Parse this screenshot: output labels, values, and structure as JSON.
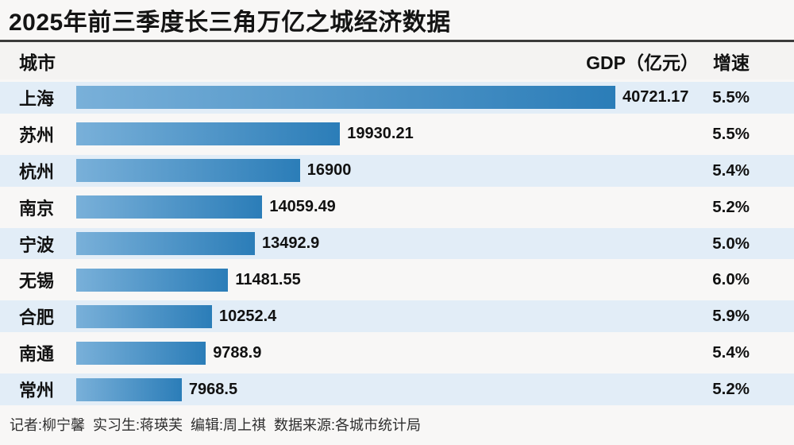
{
  "title": "2025年前三季度长三角万亿之城经济数据",
  "columns": {
    "city": "城市",
    "gdp": "GDP（亿元）",
    "growth": "增速"
  },
  "footer": "记者:柳宁馨  实习生:蒋瑛芙  编辑:周上祺  数据来源:各城市统计局",
  "colors": {
    "page_bg": "#f8f7f6",
    "divider": "#3b3b3b",
    "row_alt_bg": "#e2edf7",
    "bar_gradient_start": "#79b0d9",
    "bar_gradient_end": "#2b7db8"
  },
  "chart_data": {
    "type": "bar",
    "orientation": "horizontal",
    "title": "2025年前三季度长三角万亿之城经济数据",
    "categories": [
      "上海",
      "苏州",
      "杭州",
      "南京",
      "宁波",
      "无锡",
      "合肥",
      "南通",
      "常州"
    ],
    "series": [
      {
        "name": "GDP（亿元）",
        "values": [
          40721.17,
          19930.21,
          16900,
          14059.49,
          13492.9,
          11481.55,
          10252.4,
          9788.9,
          7968.5
        ]
      },
      {
        "name": "增速",
        "values": [
          "5.5%",
          "5.5%",
          "5.4%",
          "5.2%",
          "5.0%",
          "6.0%",
          "5.9%",
          "5.4%",
          "5.2%"
        ]
      }
    ],
    "value_labels": [
      "40721.17",
      "19930.21",
      "16900",
      "14059.49",
      "13492.9",
      "11481.55",
      "10252.4",
      "9788.9",
      "7968.5"
    ],
    "xlim": [
      0,
      40721.17
    ],
    "grid": false,
    "legend": false,
    "source": "各城市统计局"
  }
}
